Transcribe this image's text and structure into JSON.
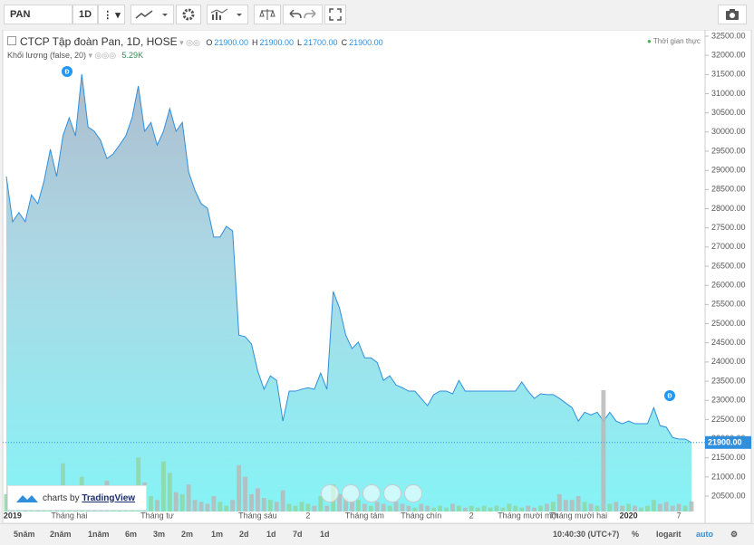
{
  "toolbar": {
    "symbol": "PAN",
    "interval": "1D"
  },
  "legend": {
    "title": "CTCP Tập đoàn Pan, 1D, HOSE",
    "ohlc": [
      {
        "key": "O",
        "value": "21900.00"
      },
      {
        "key": "H",
        "value": "21900.00"
      },
      {
        "key": "L",
        "value": "21700.00"
      },
      {
        "key": "C",
        "value": "21900.00"
      }
    ],
    "realtime": "Thời gian thực",
    "volume_title": "Khối lượng (false, 20)",
    "volume_value": "5.29K"
  },
  "events": [
    "Đ",
    "Đ"
  ],
  "watermark": {
    "prefix": "charts by",
    "brand": "TradingView"
  },
  "chart_data": {
    "type": "area",
    "categories": [
      null,
      "2019",
      null,
      null,
      null,
      null,
      null,
      null,
      null,
      null,
      "Tháng hai",
      null,
      null,
      null,
      null,
      null,
      null,
      null,
      null,
      null,
      null,
      null,
      null,
      null,
      "Tháng tư",
      null,
      null,
      null,
      null,
      null,
      null,
      null,
      null,
      null,
      null,
      null,
      null,
      null,
      null,
      null,
      "Tháng sáu",
      null,
      null,
      null,
      null,
      null,
      null,
      null,
      "2",
      null,
      null,
      null,
      null,
      null,
      null,
      null,
      null,
      "Tháng tám",
      null,
      null,
      null,
      null,
      null,
      null,
      null,
      null,
      "Tháng chín",
      null,
      null,
      null,
      null,
      null,
      null,
      null,
      "2",
      null,
      null,
      null,
      null,
      null,
      null,
      null,
      null,
      "Tháng mười một",
      null,
      null,
      null,
      null,
      null,
      null,
      null,
      "Tháng mười hai",
      null,
      null,
      null,
      null,
      null,
      null,
      null,
      "2020",
      null,
      null,
      null,
      null,
      null,
      null,
      null,
      "7",
      null,
      null
    ],
    "series": [
      {
        "color": "#2f8fdc",
        "values": [
          28840,
          27660,
          27900,
          27660,
          28360,
          28130,
          28720,
          29550,
          28840,
          29900,
          30370,
          29900,
          31510,
          30130,
          30020,
          29780,
          29310,
          29430,
          29660,
          29900,
          30370,
          31200,
          30020,
          30250,
          29660,
          30020,
          30610,
          30020,
          30250,
          28960,
          28480,
          28130,
          28010,
          27260,
          27260,
          27540,
          27420,
          24700,
          24660,
          24470,
          23760,
          23290,
          23640,
          23520,
          22460,
          23240,
          23240,
          23290,
          23330,
          23290,
          23710,
          23290,
          25840,
          25410,
          24700,
          24350,
          24520,
          24110,
          24110,
          23990,
          23520,
          23640,
          23400,
          23330,
          23240,
          23240,
          23050,
          22860,
          23150,
          23240,
          23240,
          23170,
          23520,
          23240,
          23240,
          23240,
          23240,
          23240,
          23240,
          23240,
          23240,
          23240,
          23480,
          23240,
          23050,
          23170,
          23150,
          23150,
          23050,
          22930,
          22810,
          22460,
          22690,
          22620,
          22690,
          22460,
          22690,
          22460,
          22390,
          22460,
          22390,
          22390,
          22390,
          22810,
          22340,
          22300,
          22030,
          21990,
          21990,
          21900
        ]
      },
      {
        "axis": "y2",
        "color": "#8fd6a6",
        "down_color": "#b9b9b9",
        "values": [
          9000,
          4000,
          6000,
          3000,
          5000,
          4000,
          7000,
          8000,
          3000,
          25000,
          12000,
          6000,
          18000,
          9000,
          5000,
          4000,
          16000,
          5000,
          4000,
          7000,
          9000,
          28000,
          15000,
          8000,
          6000,
          26000,
          20000,
          10000,
          9000,
          14000,
          6000,
          5000,
          4000,
          8000,
          5000,
          3000,
          6000,
          24000,
          18000,
          9000,
          12000,
          7000,
          6000,
          5000,
          11000,
          4000,
          3000,
          5000,
          4000,
          3000,
          8000,
          3000,
          14000,
          9000,
          7000,
          5000,
          6000,
          4000,
          3000,
          5000,
          4000,
          3000,
          5000,
          4000,
          3000,
          2000,
          4000,
          3000,
          2000,
          3000,
          2000,
          4000,
          3000,
          2000,
          3000,
          2000,
          3000,
          2000,
          3000,
          2000,
          4000,
          3000,
          2000,
          3000,
          2000,
          3000,
          4000,
          5000,
          9000,
          6000,
          6000,
          8000,
          5000,
          4000,
          3000,
          63000,
          4000,
          5000,
          3000,
          4000,
          3000,
          2000,
          3000,
          6000,
          4000,
          5000,
          3000,
          4000,
          3000,
          5290
        ]
      }
    ],
    "ylim": [
      20100,
      32665
    ],
    "y2lim": [
      0,
      250000
    ],
    "yticks": [
      {
        "value": 20500,
        "label": "20500.00"
      },
      {
        "value": 21000,
        "label": "21000.00"
      },
      {
        "value": 21500,
        "label": "21500.00"
      },
      {
        "value": 22000,
        "label": "22000.00"
      },
      {
        "value": 22500,
        "label": "22500.00"
      },
      {
        "value": 23000,
        "label": "23000.00"
      },
      {
        "value": 23500,
        "label": "23500.00"
      },
      {
        "value": 24000,
        "label": "24000.00"
      },
      {
        "value": 24500,
        "label": "24500.00"
      },
      {
        "value": 25000,
        "label": "25000.00"
      },
      {
        "value": 25500,
        "label": "25500.00"
      },
      {
        "value": 26000,
        "label": "26000.00"
      },
      {
        "value": 26500,
        "label": "26500.00"
      },
      {
        "value": 27000,
        "label": "27000.00"
      },
      {
        "value": 27500,
        "label": "27500.00"
      },
      {
        "value": 28000,
        "label": "28000.00"
      },
      {
        "value": 28500,
        "label": "28500.00"
      },
      {
        "value": 29000,
        "label": "29000.00"
      },
      {
        "value": 29500,
        "label": "29500.00"
      },
      {
        "value": 30000,
        "label": "30000.00"
      },
      {
        "value": 30500,
        "label": "30500.00"
      },
      {
        "value": 31000,
        "label": "31000.00"
      },
      {
        "value": 31500,
        "label": "31500.00"
      },
      {
        "value": 32000,
        "label": "32000.00"
      },
      {
        "value": 32500,
        "label": "32500.00"
      }
    ],
    "last_price": {
      "value": 21900,
      "label": "21900.00"
    }
  },
  "bottom_bar": {
    "ranges": [
      "5năm",
      "2năm",
      "1năm",
      "6m",
      "3m",
      "2m",
      "1m",
      "2d",
      "1d",
      "7d",
      "1d"
    ],
    "time": "10:40:30 (UTC+7)",
    "percent": "%",
    "log": "logarit",
    "auto": "auto"
  }
}
